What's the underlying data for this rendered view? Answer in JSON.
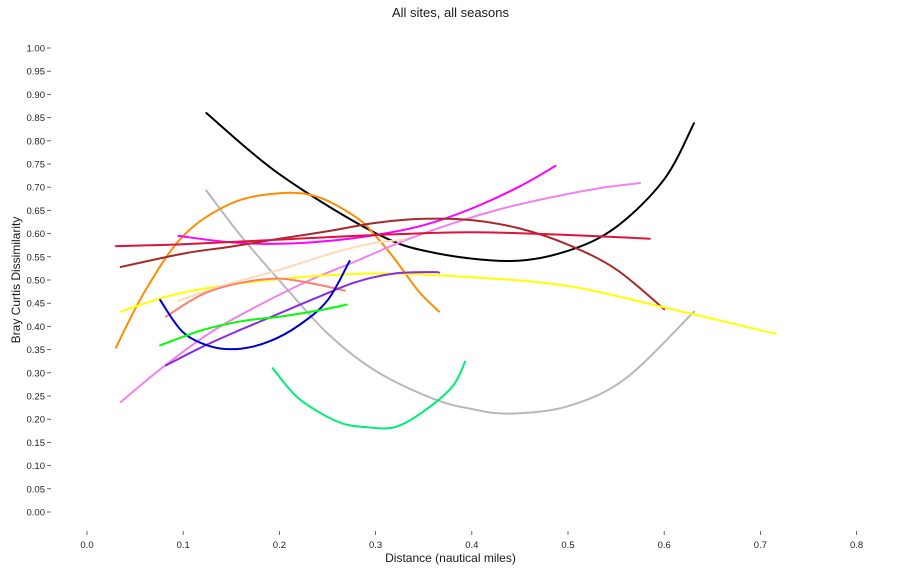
{
  "chart_data": {
    "type": "line",
    "title": "All sites, all seasons",
    "xlabel": "Distance (nautical miles)",
    "ylabel": "Bray Curtis Dissimilarity",
    "xlim": [
      -0.04,
      0.84
    ],
    "ylim": [
      -0.04,
      1.02
    ],
    "x_ticks": [
      "0.0",
      "0.1",
      "0.2",
      "0.3",
      "0.4",
      "0.5",
      "0.6",
      "0.7",
      "0.8"
    ],
    "y_ticks": [
      "0.00",
      "0.05",
      "0.10",
      "0.15",
      "0.20",
      "0.25",
      "0.30",
      "0.35",
      "0.40",
      "0.45",
      "0.50",
      "0.55",
      "0.60",
      "0.65",
      "0.70",
      "0.75",
      "0.80",
      "0.85",
      "0.90",
      "0.95",
      "1.00"
    ],
    "grid": false,
    "legend": "none",
    "series": [
      {
        "color": "#000000",
        "x": [
          0.124,
          0.2,
          0.3,
          0.36,
          0.44,
          0.5,
          0.55,
          0.6,
          0.631
        ],
        "y": [
          0.86,
          0.728,
          0.601,
          0.559,
          0.541,
          0.563,
          0.614,
          0.717,
          0.838
        ]
      },
      {
        "color": "#B8B8B8",
        "x": [
          0.124,
          0.16,
          0.2,
          0.25,
          0.3,
          0.36,
          0.4,
          0.44,
          0.5,
          0.56,
          0.631
        ],
        "y": [
          0.693,
          0.595,
          0.499,
          0.385,
          0.304,
          0.244,
          0.222,
          0.212,
          0.228,
          0.288,
          0.432
        ]
      },
      {
        "color": "#FF8C00",
        "x": [
          0.03,
          0.06,
          0.1,
          0.15,
          0.2,
          0.24,
          0.28,
          0.3,
          0.32,
          0.345,
          0.366
        ],
        "y": [
          0.354,
          0.475,
          0.595,
          0.665,
          0.687,
          0.679,
          0.635,
          0.595,
          0.545,
          0.475,
          0.432
        ]
      },
      {
        "color": "#FF00FF",
        "x": [
          0.095,
          0.15,
          0.2,
          0.25,
          0.3,
          0.35,
          0.4,
          0.45,
          0.487
        ],
        "y": [
          0.595,
          0.581,
          0.578,
          0.584,
          0.597,
          0.618,
          0.654,
          0.702,
          0.746
        ]
      },
      {
        "color": "#EE82EE",
        "x": [
          0.035,
          0.08,
          0.13,
          0.18,
          0.23,
          0.28,
          0.33,
          0.38,
          0.43,
          0.48,
          0.53,
          0.575
        ],
        "y": [
          0.237,
          0.314,
          0.389,
          0.447,
          0.498,
          0.541,
          0.585,
          0.622,
          0.653,
          0.677,
          0.697,
          0.709
        ]
      },
      {
        "color": "#A52A2A",
        "x": [
          0.035,
          0.1,
          0.15,
          0.2,
          0.25,
          0.3,
          0.35,
          0.4,
          0.45,
          0.5,
          0.55,
          0.6
        ],
        "y": [
          0.528,
          0.557,
          0.572,
          0.589,
          0.605,
          0.623,
          0.632,
          0.629,
          0.611,
          0.576,
          0.523,
          0.437
        ]
      },
      {
        "color": "#DC143C",
        "x": [
          0.03,
          0.1,
          0.2,
          0.3,
          0.4,
          0.5,
          0.585
        ],
        "y": [
          0.573,
          0.577,
          0.587,
          0.597,
          0.603,
          0.597,
          0.589
        ]
      },
      {
        "color": "#FFFF00",
        "x": [
          0.035,
          0.1,
          0.2,
          0.3,
          0.4,
          0.5,
          0.6,
          0.716
        ],
        "y": [
          0.432,
          0.473,
          0.502,
          0.514,
          0.506,
          0.487,
          0.441,
          0.384
        ]
      },
      {
        "color": "#FFDAB9",
        "x": [
          0.095,
          0.14,
          0.2,
          0.26,
          0.3,
          0.33
        ],
        "y": [
          0.455,
          0.487,
          0.522,
          0.561,
          0.58,
          0.587
        ]
      },
      {
        "color": "#FA8072",
        "x": [
          0.082,
          0.12,
          0.16,
          0.2,
          0.24,
          0.268
        ],
        "y": [
          0.421,
          0.469,
          0.494,
          0.503,
          0.49,
          0.477
        ]
      },
      {
        "color": "#8A2BE2",
        "x": [
          0.082,
          0.12,
          0.16,
          0.2,
          0.24,
          0.28,
          0.32,
          0.36,
          0.366
        ],
        "y": [
          0.316,
          0.356,
          0.393,
          0.428,
          0.463,
          0.496,
          0.514,
          0.517,
          0.516
        ]
      },
      {
        "color": "#0000CD",
        "x": [
          0.076,
          0.1,
          0.13,
          0.16,
          0.19,
          0.22,
          0.25,
          0.273
        ],
        "y": [
          0.457,
          0.387,
          0.356,
          0.352,
          0.368,
          0.402,
          0.456,
          0.541
        ]
      },
      {
        "color": "#00FF00",
        "x": [
          0.076,
          0.12,
          0.16,
          0.2,
          0.24,
          0.27
        ],
        "y": [
          0.359,
          0.392,
          0.411,
          0.421,
          0.434,
          0.447
        ]
      },
      {
        "color": "#00EE76",
        "x": [
          0.193,
          0.22,
          0.26,
          0.29,
          0.32,
          0.35,
          0.38,
          0.393
        ],
        "y": [
          0.31,
          0.245,
          0.195,
          0.183,
          0.183,
          0.217,
          0.271,
          0.324
        ]
      }
    ]
  }
}
